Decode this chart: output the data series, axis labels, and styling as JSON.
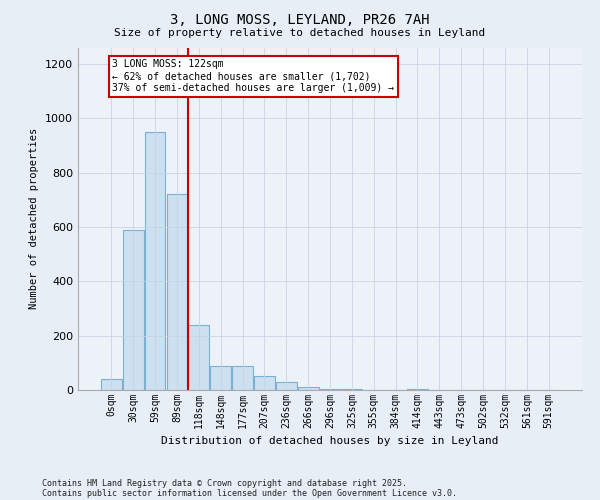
{
  "title": "3, LONG MOSS, LEYLAND, PR26 7AH",
  "subtitle": "Size of property relative to detached houses in Leyland",
  "xlabel": "Distribution of detached houses by size in Leyland",
  "ylabel": "Number of detached properties",
  "bar_color": "#cce0f0",
  "bar_edge_color": "#7ab0d4",
  "categories": [
    "0sqm",
    "30sqm",
    "59sqm",
    "89sqm",
    "118sqm",
    "148sqm",
    "177sqm",
    "207sqm",
    "236sqm",
    "266sqm",
    "296sqm",
    "325sqm",
    "355sqm",
    "384sqm",
    "414sqm",
    "443sqm",
    "473sqm",
    "502sqm",
    "532sqm",
    "561sqm",
    "591sqm"
  ],
  "values": [
    40,
    590,
    950,
    720,
    240,
    90,
    90,
    50,
    30,
    10,
    5,
    2,
    0,
    0,
    2,
    0,
    0,
    0,
    0,
    0,
    0
  ],
  "ylim": [
    0,
    1260
  ],
  "yticks": [
    0,
    200,
    400,
    600,
    800,
    1000,
    1200
  ],
  "vline_x": 3.5,
  "vline_color": "#cc0000",
  "annotation_title": "3 LONG MOSS: 122sqm",
  "annotation_line1": "← 62% of detached houses are smaller (1,702)",
  "annotation_line2": "37% of semi-detached houses are larger (1,009) →",
  "annotation_box_color": "#cc0000",
  "footnote1": "Contains HM Land Registry data © Crown copyright and database right 2025.",
  "footnote2": "Contains public sector information licensed under the Open Government Licence v3.0.",
  "bg_color": "#e8eef6",
  "plot_bg_color": "#edf2f9"
}
